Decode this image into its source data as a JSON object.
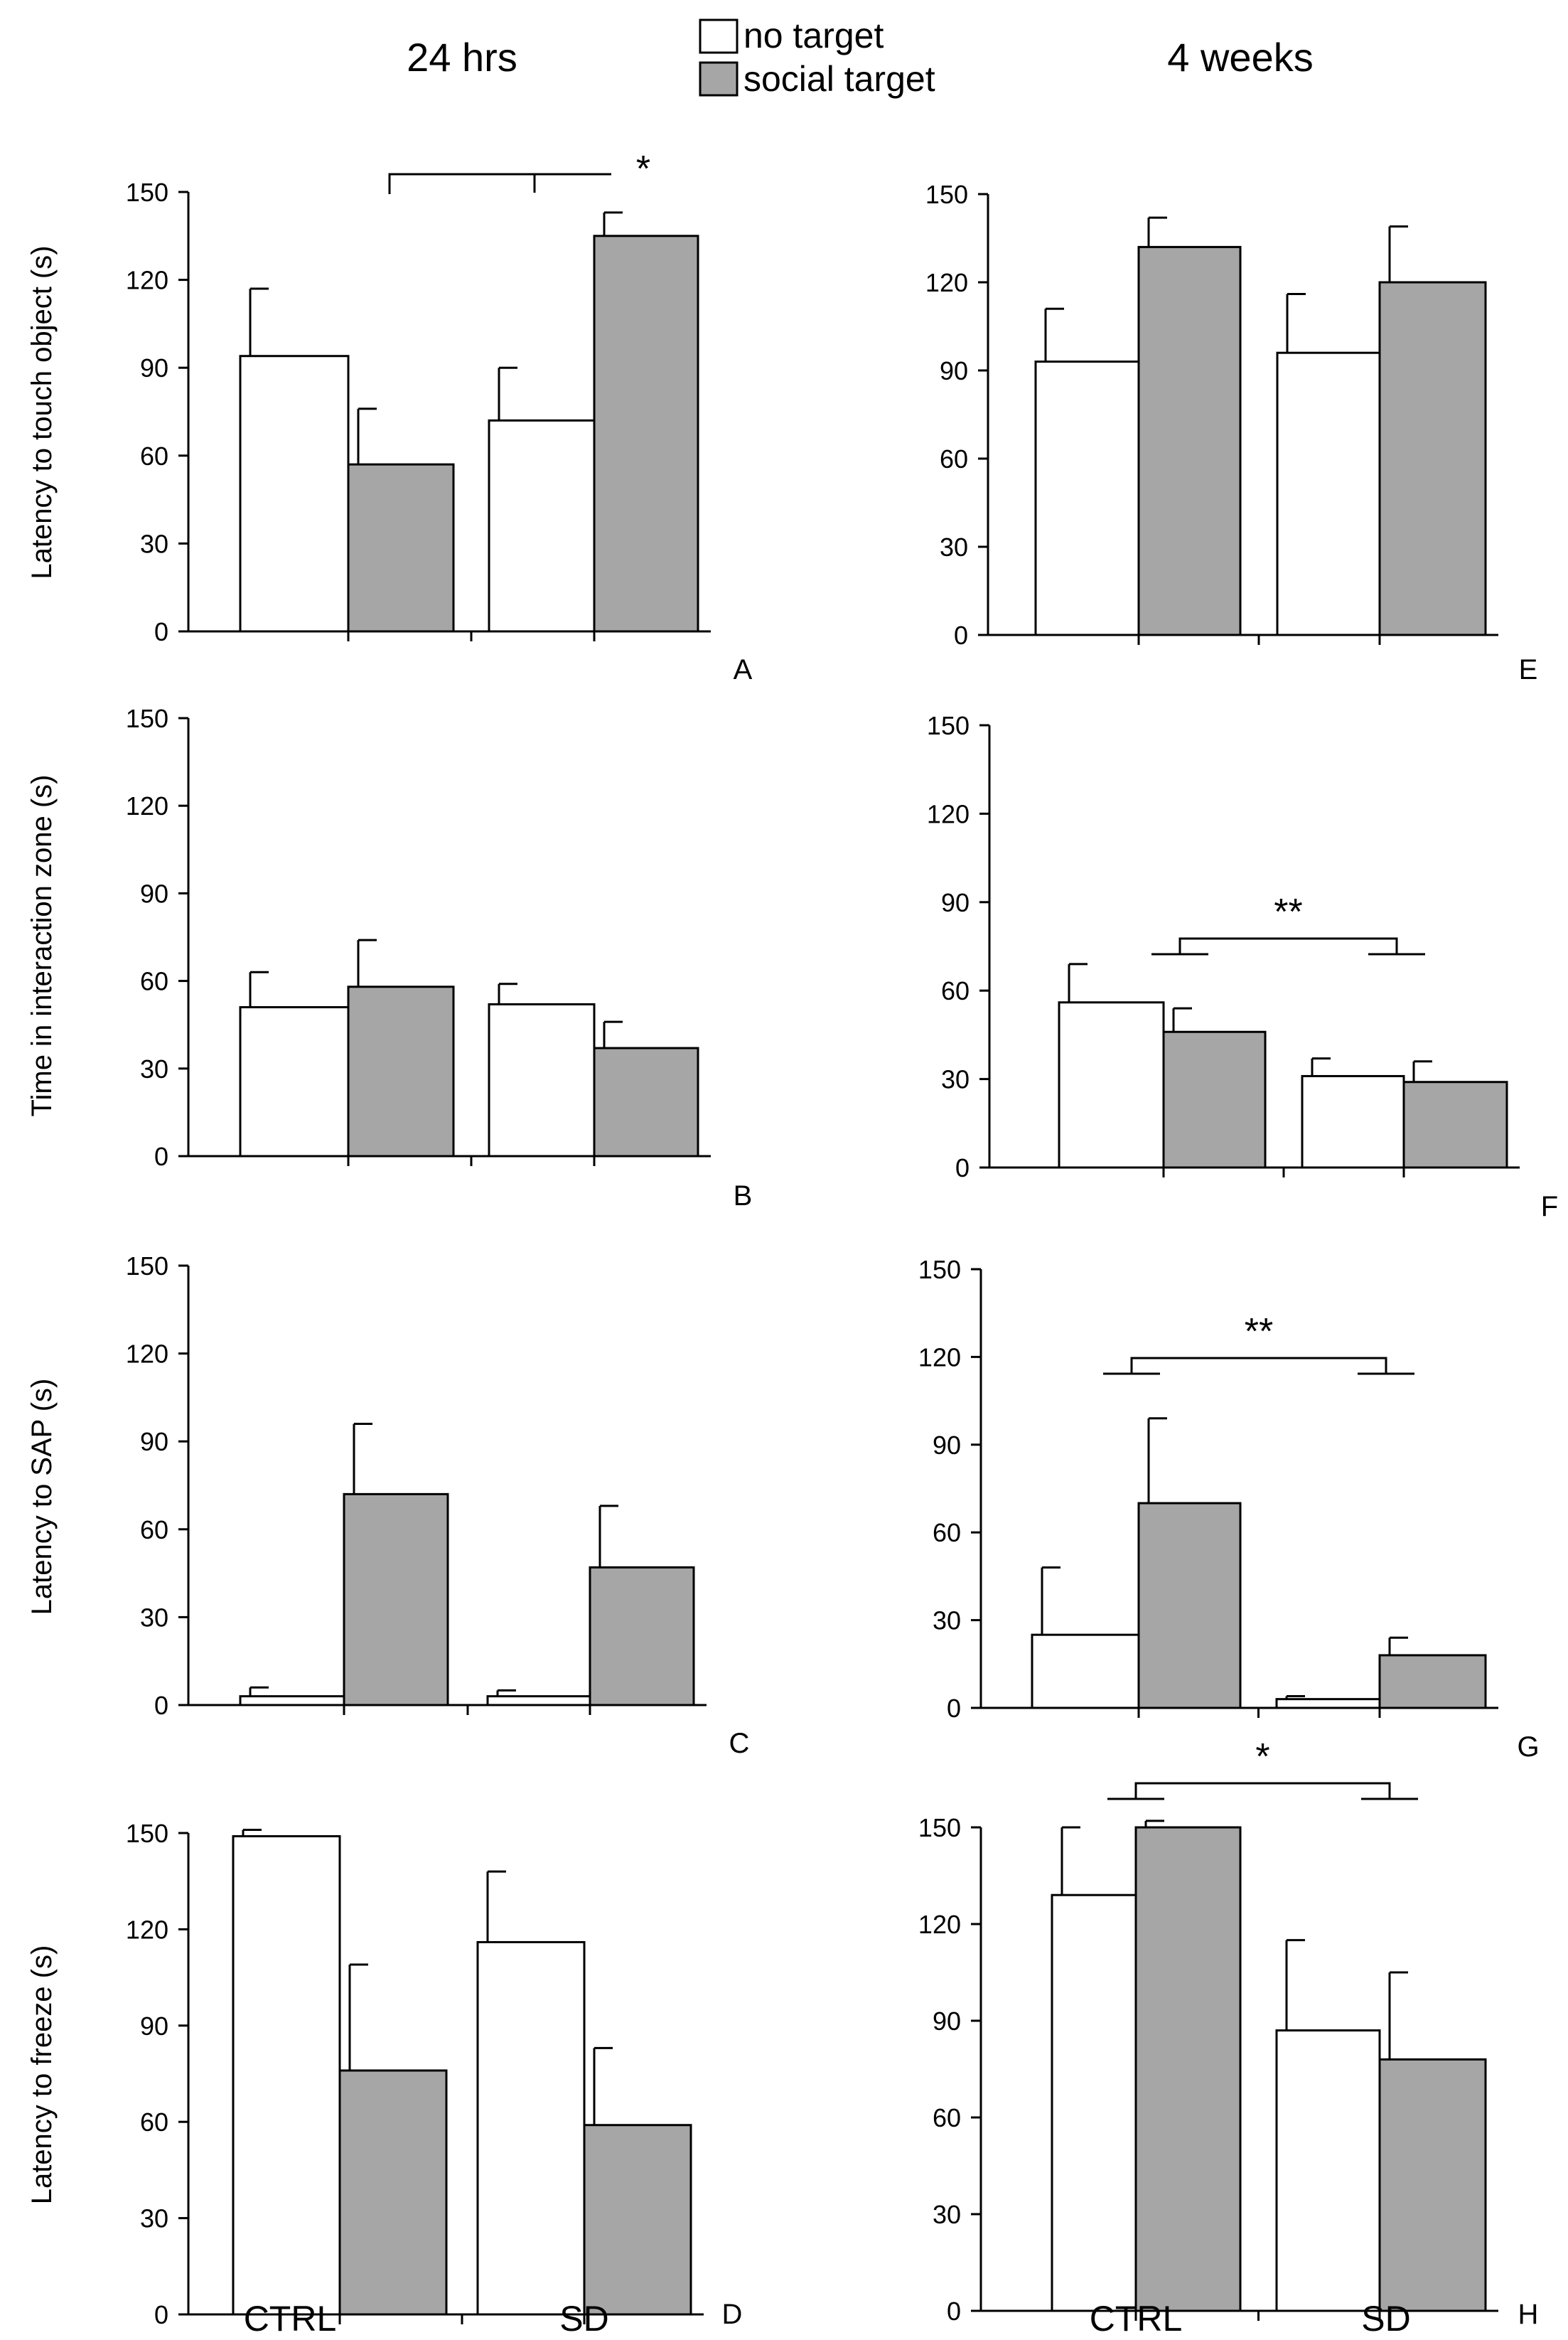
{
  "legend": {
    "none_label": "no target",
    "social_label": "social target",
    "colors": {
      "none": "#ffffff",
      "social": "#a6a6a6"
    }
  },
  "columns": {
    "left": "24 hrs",
    "right": "4 weeks"
  },
  "groups": [
    "CTRL",
    "SD"
  ],
  "chart_data": [
    {
      "id": "A",
      "type": "bar",
      "panel_label": "A",
      "column": "24 hrs",
      "ylabel": "Latency to touch object (s)",
      "ylim": [
        0,
        150
      ],
      "yticks": [
        "0",
        "30",
        "60",
        "90",
        "120",
        "150"
      ],
      "categories": [
        "CTRL",
        "SD"
      ],
      "series": [
        {
          "name": "no target",
          "values": [
            94,
            72
          ],
          "errors": [
            23,
            18
          ]
        },
        {
          "name": "social target",
          "values": [
            57,
            135
          ],
          "errors": [
            19,
            8
          ]
        }
      ],
      "significance": "*"
    },
    {
      "id": "B",
      "type": "bar",
      "panel_label": "B",
      "column": "24 hrs",
      "ylabel": "Time in interaction zone (s)",
      "ylim": [
        0,
        150
      ],
      "yticks": [
        "0",
        "30",
        "60",
        "90",
        "120",
        "150"
      ],
      "categories": [
        "CTRL",
        "SD"
      ],
      "series": [
        {
          "name": "no target",
          "values": [
            51,
            52
          ],
          "errors": [
            12,
            7
          ]
        },
        {
          "name": "social target",
          "values": [
            58,
            37
          ],
          "errors": [
            16,
            9
          ]
        }
      ],
      "significance": ""
    },
    {
      "id": "C",
      "type": "bar",
      "panel_label": "C",
      "column": "24 hrs",
      "ylabel": "Latency to SAP (s)",
      "ylim": [
        0,
        150
      ],
      "yticks": [
        "0",
        "30",
        "60",
        "90",
        "120",
        "150"
      ],
      "categories": [
        "CTRL",
        "SD"
      ],
      "series": [
        {
          "name": "no target",
          "values": [
            3,
            3
          ],
          "errors": [
            3,
            2
          ]
        },
        {
          "name": "social target",
          "values": [
            72,
            47
          ],
          "errors": [
            24,
            21
          ]
        }
      ],
      "significance": ""
    },
    {
      "id": "D",
      "type": "bar",
      "panel_label": "D",
      "column": "24 hrs",
      "ylabel": "Latency to freeze (s)",
      "ylim": [
        0,
        150
      ],
      "yticks": [
        "0",
        "30",
        "60",
        "90",
        "120",
        "150"
      ],
      "categories": [
        "CTRL",
        "SD"
      ],
      "series": [
        {
          "name": "no target",
          "values": [
            149,
            116
          ],
          "errors": [
            2,
            22
          ]
        },
        {
          "name": "social target",
          "values": [
            76,
            59
          ],
          "errors": [
            33,
            24
          ]
        }
      ],
      "significance": ""
    },
    {
      "id": "E",
      "type": "bar",
      "panel_label": "E",
      "column": "4 weeks",
      "ylabel": "",
      "ylim": [
        0,
        150
      ],
      "yticks": [
        "0",
        "30",
        "60",
        "90",
        "120",
        "150"
      ],
      "categories": [
        "CTRL",
        "SD"
      ],
      "series": [
        {
          "name": "no target",
          "values": [
            93,
            96
          ],
          "errors": [
            18,
            20
          ]
        },
        {
          "name": "social target",
          "values": [
            132,
            120
          ],
          "errors": [
            10,
            19
          ]
        }
      ],
      "significance": ""
    },
    {
      "id": "F",
      "type": "bar",
      "panel_label": "F",
      "column": "4 weeks",
      "ylabel": "",
      "ylim": [
        0,
        150
      ],
      "yticks": [
        "0",
        "30",
        "60",
        "90",
        "120",
        "150"
      ],
      "categories": [
        "CTRL",
        "SD"
      ],
      "series": [
        {
          "name": "no target",
          "values": [
            56,
            31
          ],
          "errors": [
            13,
            6
          ]
        },
        {
          "name": "social target",
          "values": [
            46,
            29
          ],
          "errors": [
            8,
            7
          ]
        }
      ],
      "significance": "**"
    },
    {
      "id": "G",
      "type": "bar",
      "panel_label": "G",
      "column": "4 weeks",
      "ylabel": "",
      "ylim": [
        0,
        150
      ],
      "yticks": [
        "0",
        "30",
        "60",
        "90",
        "120",
        "150"
      ],
      "categories": [
        "CTRL",
        "SD"
      ],
      "series": [
        {
          "name": "no target",
          "values": [
            25,
            3
          ],
          "errors": [
            23,
            1
          ]
        },
        {
          "name": "social target",
          "values": [
            70,
            18
          ],
          "errors": [
            29,
            6
          ]
        }
      ],
      "significance": "**"
    },
    {
      "id": "H",
      "type": "bar",
      "panel_label": "H",
      "column": "4 weeks",
      "ylabel": "",
      "ylim": [
        0,
        150
      ],
      "yticks": [
        "0",
        "30",
        "60",
        "90",
        "120",
        "150"
      ],
      "categories": [
        "CTRL",
        "SD"
      ],
      "series": [
        {
          "name": "no target",
          "values": [
            129,
            87
          ],
          "errors": [
            21,
            28
          ]
        },
        {
          "name": "social target",
          "values": [
            150,
            78
          ],
          "errors": [
            2,
            27
          ]
        }
      ],
      "significance": "*"
    }
  ]
}
